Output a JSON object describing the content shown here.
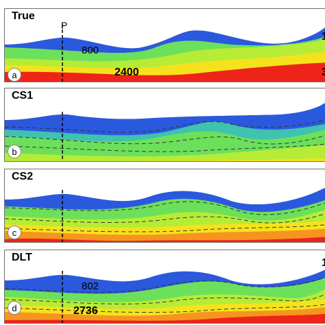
{
  "colors": {
    "blue": "#2b59dd",
    "blue_light": "#3fa2ff",
    "green": "#6ce05a",
    "lime": "#b6ec36",
    "yellow": "#f6e21c",
    "orange": "#f79420",
    "red": "#ee2418"
  },
  "panels": [
    {
      "title": "True",
      "letter": "a",
      "marker": "P",
      "labels": [
        "800",
        "2400"
      ],
      "edge_labels": [
        "1",
        "3"
      ]
    },
    {
      "title": "CS1",
      "letter": "b"
    },
    {
      "title": "CS2",
      "letter": "c"
    },
    {
      "title": "DLT",
      "letter": "d",
      "labels": [
        "802",
        "2736"
      ],
      "edge_labels": [
        "1"
      ]
    }
  ]
}
